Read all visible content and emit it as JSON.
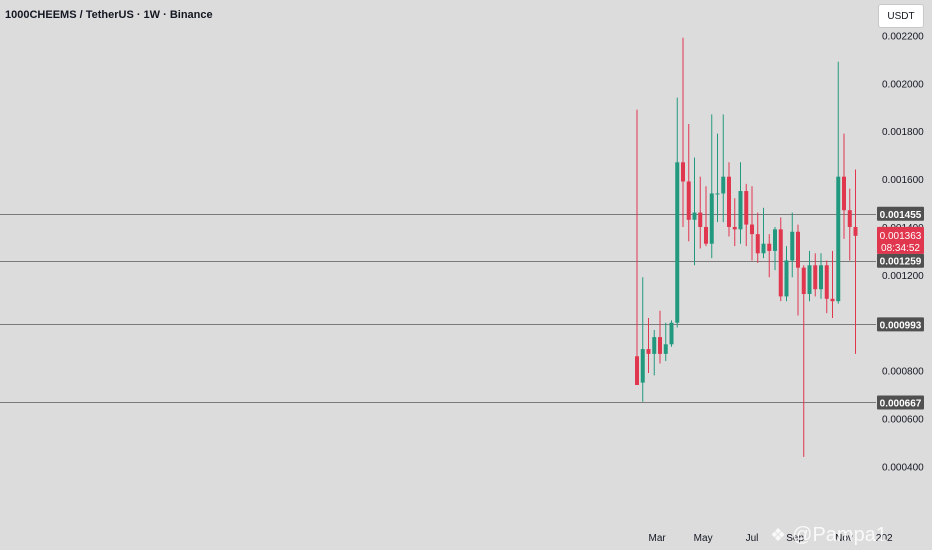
{
  "header": {
    "title": "1000CHEEMS / TetherUS · 1W · Binance",
    "currency": "USDT"
  },
  "watermark": {
    "logo": "❖",
    "text": "@Pampa1"
  },
  "colors": {
    "up": "#22997f",
    "down": "#e0364e",
    "line": "#7a7a7a",
    "label_bg": "#505050",
    "price_bg": "#e0364e",
    "axis_text": "#131722",
    "background": "#dcdcdc"
  },
  "chart_data": {
    "type": "candlestick",
    "symbol": "1000CHEEMS / TetherUS",
    "interval": "1W",
    "exchange": "Binance",
    "ylim": [
      0.00036,
      0.00221
    ],
    "y_ticks": [
      "0.002200",
      "0.002000",
      "0.001800",
      "0.001600",
      "0.001400",
      "0.001200",
      "0.000800",
      "0.000600",
      "0.000400"
    ],
    "y_tick_values": [
      0.0022,
      0.002,
      0.0018,
      0.0016,
      0.0014,
      0.0012,
      0.0008,
      0.0006,
      0.0004
    ],
    "x_ticks": [
      "Mar",
      "May",
      "Jul",
      "Sep",
      "Nov",
      "202"
    ],
    "x_tick_candle_index": [
      3.5,
      11.5,
      20,
      27.5,
      36,
      43
    ],
    "horizontal_levels": [
      {
        "value": 0.001455,
        "label": "0.001455"
      },
      {
        "value": 0.001259,
        "label": "0.001259"
      },
      {
        "value": 0.000993,
        "label": "0.000993"
      },
      {
        "value": 0.000667,
        "label": "0.000667"
      }
    ],
    "current_price": {
      "value": 0.001363,
      "label": "0.001363",
      "countdown": "08:34:52"
    },
    "candles": [
      {
        "o": 0.00086,
        "h": 0.00189,
        "l": 0.00074,
        "c": 0.00074
      },
      {
        "o": 0.00075,
        "h": 0.00119,
        "l": 0.00067,
        "c": 0.00089
      },
      {
        "o": 0.00089,
        "h": 0.00102,
        "l": 0.00079,
        "c": 0.00087
      },
      {
        "o": 0.00087,
        "h": 0.00097,
        "l": 0.00078,
        "c": 0.00094
      },
      {
        "o": 0.00094,
        "h": 0.00105,
        "l": 0.00083,
        "c": 0.00087
      },
      {
        "o": 0.00087,
        "h": 0.001,
        "l": 0.00084,
        "c": 0.00091
      },
      {
        "o": 0.00091,
        "h": 0.00101,
        "l": 0.0009,
        "c": 0.001
      },
      {
        "o": 0.001,
        "h": 0.00194,
        "l": 0.00098,
        "c": 0.00167
      },
      {
        "o": 0.00167,
        "h": 0.00219,
        "l": 0.0014,
        "c": 0.00159
      },
      {
        "o": 0.00159,
        "h": 0.00183,
        "l": 0.00134,
        "c": 0.00143
      },
      {
        "o": 0.00143,
        "h": 0.00169,
        "l": 0.00124,
        "c": 0.00146
      },
      {
        "o": 0.00146,
        "h": 0.00161,
        "l": 0.00131,
        "c": 0.0014
      },
      {
        "o": 0.0014,
        "h": 0.00157,
        "l": 0.00132,
        "c": 0.00133
      },
      {
        "o": 0.00133,
        "h": 0.00187,
        "l": 0.00127,
        "c": 0.00154
      },
      {
        "o": 0.00154,
        "h": 0.00179,
        "l": 0.00142,
        "c": 0.00154
      },
      {
        "o": 0.00154,
        "h": 0.00187,
        "l": 0.00142,
        "c": 0.00161
      },
      {
        "o": 0.00161,
        "h": 0.00167,
        "l": 0.00136,
        "c": 0.0014
      },
      {
        "o": 0.0014,
        "h": 0.00152,
        "l": 0.00132,
        "c": 0.00139
      },
      {
        "o": 0.00139,
        "h": 0.00167,
        "l": 0.00133,
        "c": 0.00155
      },
      {
        "o": 0.00155,
        "h": 0.00158,
        "l": 0.00132,
        "c": 0.00141
      },
      {
        "o": 0.00141,
        "h": 0.00157,
        "l": 0.00126,
        "c": 0.00137
      },
      {
        "o": 0.00137,
        "h": 0.00146,
        "l": 0.00125,
        "c": 0.00129
      },
      {
        "o": 0.00129,
        "h": 0.00148,
        "l": 0.00127,
        "c": 0.00133
      },
      {
        "o": 0.00133,
        "h": 0.00137,
        "l": 0.00119,
        "c": 0.0013
      },
      {
        "o": 0.0013,
        "h": 0.0014,
        "l": 0.00122,
        "c": 0.00139
      },
      {
        "o": 0.00139,
        "h": 0.00144,
        "l": 0.00109,
        "c": 0.00111
      },
      {
        "o": 0.00111,
        "h": 0.00132,
        "l": 0.00109,
        "c": 0.00126
      },
      {
        "o": 0.00126,
        "h": 0.00146,
        "l": 0.00119,
        "c": 0.00138
      },
      {
        "o": 0.00138,
        "h": 0.00141,
        "l": 0.00103,
        "c": 0.00123
      },
      {
        "o": 0.00123,
        "h": 0.00124,
        "l": 0.00044,
        "c": 0.00112
      },
      {
        "o": 0.00112,
        "h": 0.0013,
        "l": 0.00109,
        "c": 0.00124
      },
      {
        "o": 0.00124,
        "h": 0.00129,
        "l": 0.00111,
        "c": 0.00114
      },
      {
        "o": 0.00114,
        "h": 0.00129,
        "l": 0.0011,
        "c": 0.00124
      },
      {
        "o": 0.00124,
        "h": 0.00126,
        "l": 0.00104,
        "c": 0.0011
      },
      {
        "o": 0.0011,
        "h": 0.0013,
        "l": 0.00102,
        "c": 0.00109
      },
      {
        "o": 0.00109,
        "h": 0.00209,
        "l": 0.00108,
        "c": 0.00161
      },
      {
        "o": 0.00161,
        "h": 0.00179,
        "l": 0.00135,
        "c": 0.00147
      },
      {
        "o": 0.00147,
        "h": 0.00156,
        "l": 0.00126,
        "c": 0.0014
      },
      {
        "o": 0.0014,
        "h": 0.00164,
        "l": 0.00087,
        "c": 0.001363
      }
    ]
  }
}
